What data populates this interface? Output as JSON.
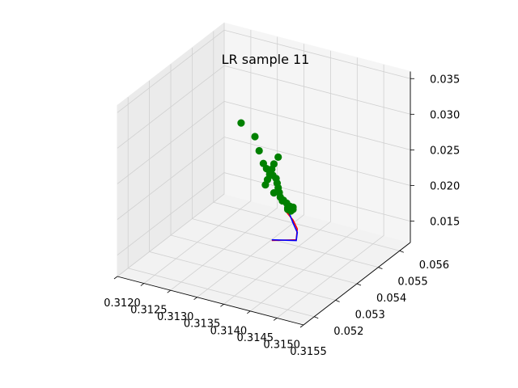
{
  "chart_data": {
    "type": "scatter",
    "projection": "3d",
    "title": "LR sample 11",
    "xlabel": "",
    "ylabel": "",
    "zlabel": "",
    "xlim": [
      0.312,
      0.3155
    ],
    "ylim": [
      0.0515,
      0.0565
    ],
    "zlim": [
      0.012,
      0.036
    ],
    "x_ticks": [
      "0.3120",
      "0.3125",
      "0.3130",
      "0.3135",
      "0.3140",
      "0.3145",
      "0.3150",
      "0.3155"
    ],
    "y_ticks": [
      "0.052",
      "0.053",
      "0.054",
      "0.055",
      "0.056"
    ],
    "z_ticks": [
      "0.015",
      "0.020",
      "0.025",
      "0.030",
      "0.035"
    ],
    "grid": true,
    "colors": {
      "points": "#008000",
      "line_red": "#ff0000",
      "line_blue": "#0000ff"
    },
    "series": [
      {
        "kind": "scatter",
        "color": "#008000",
        "points": [
          [
            0.3128,
            0.0553,
            0.0263
          ],
          [
            0.3131,
            0.0552,
            0.0252
          ],
          [
            0.3133,
            0.0549,
            0.0243
          ],
          [
            0.3135,
            0.0546,
            0.0236
          ],
          [
            0.3136,
            0.0545,
            0.0233
          ],
          [
            0.3137,
            0.0544,
            0.0233
          ],
          [
            0.3138,
            0.0543,
            0.0232
          ],
          [
            0.3139,
            0.0542,
            0.0232
          ],
          [
            0.314,
            0.054,
            0.0232
          ],
          [
            0.3141,
            0.0538,
            0.0232
          ],
          [
            0.3142,
            0.0536,
            0.0232
          ],
          [
            0.3143,
            0.0534,
            0.0232
          ],
          [
            0.3144,
            0.0533,
            0.0232
          ],
          [
            0.3145,
            0.0532,
            0.0232
          ],
          [
            0.3146,
            0.0531,
            0.0232
          ],
          [
            0.3146,
            0.053,
            0.0232
          ],
          [
            0.3147,
            0.053,
            0.0232
          ],
          [
            0.3147,
            0.0529,
            0.0232
          ],
          [
            0.3147,
            0.053,
            0.0235
          ],
          [
            0.3146,
            0.053,
            0.023
          ],
          [
            0.3145,
            0.053,
            0.024
          ],
          [
            0.3143,
            0.0531,
            0.0245
          ],
          [
            0.3141,
            0.0532,
            0.025
          ],
          [
            0.3141,
            0.0533,
            0.0255
          ],
          [
            0.3141,
            0.0534,
            0.026
          ],
          [
            0.3141,
            0.0535,
            0.0265
          ],
          [
            0.3141,
            0.0536,
            0.027
          ],
          [
            0.3141,
            0.0538,
            0.0275
          ]
        ]
      },
      {
        "kind": "line",
        "color": "#ff0000",
        "points": [
          [
            0.3141,
            0.0535,
            0.0165
          ],
          [
            0.3146,
            0.0534,
            0.0178
          ],
          [
            0.3147,
            0.0532,
            0.02
          ],
          [
            0.3147,
            0.053,
            0.0217
          ],
          [
            0.3146,
            0.0529,
            0.023
          ]
        ]
      },
      {
        "kind": "line",
        "color": "#0000ff",
        "points": [
          [
            0.3141,
            0.0535,
            0.0166
          ],
          [
            0.3146,
            0.0534,
            0.0177
          ],
          [
            0.3147,
            0.0532,
            0.0195
          ],
          [
            0.3147,
            0.053,
            0.0213
          ],
          [
            0.3146,
            0.053,
            0.023
          ]
        ]
      }
    ]
  }
}
